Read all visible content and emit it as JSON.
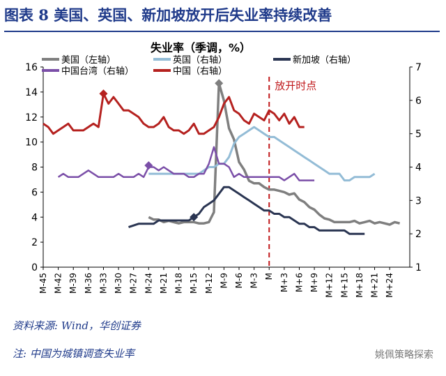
{
  "title": "图表 8   美国、英国、新加坡放开后失业率持续改善",
  "source": "资料来源: Wind，华创证券",
  "note": "注:  中国为城镇调查失业率",
  "watermark": "姚佩策略探索",
  "chart_data": {
    "type": "line",
    "title": "失业率（季调，%）",
    "left_axis": {
      "min": 0,
      "max": 16,
      "ticks": [
        0,
        2,
        4,
        6,
        8,
        10,
        12,
        14,
        16
      ]
    },
    "right_axis": {
      "min": 1,
      "max": 7,
      "ticks": [
        1,
        2,
        3,
        4,
        5,
        6,
        7
      ]
    },
    "x_start": -45,
    "x_end": 28,
    "x_tick_labels": [
      "M-45",
      "M-42",
      "M-39",
      "M-36",
      "M-33",
      "M-30",
      "M-27",
      "M-24",
      "M-21",
      "M-18",
      "M-15",
      "M-12",
      "M-9",
      "M-6",
      "M-3",
      "M",
      "M+3",
      "M+6",
      "M+9",
      "M+12",
      "M+15",
      "M+18",
      "M+21",
      "M+24"
    ],
    "x_tick_positions": [
      -45,
      -42,
      -39,
      -36,
      -33,
      -30,
      -27,
      -24,
      -21,
      -18,
      -15,
      -12,
      -9,
      -6,
      -3,
      0,
      3,
      6,
      9,
      12,
      15,
      18,
      21,
      24
    ],
    "reopen_month": 0,
    "reopen_label": "放开时点",
    "series": [
      {
        "name": "美国（左轴）",
        "axis": "left",
        "color": "#7f7f7f",
        "width": 3.5,
        "points": [
          [
            -24,
            4.0
          ],
          [
            -23,
            3.8
          ],
          [
            -22,
            3.8
          ],
          [
            -21,
            3.6
          ],
          [
            -20,
            3.7
          ],
          [
            -19,
            3.6
          ],
          [
            -18,
            3.5
          ],
          [
            -17,
            3.6
          ],
          [
            -16,
            3.6
          ],
          [
            -15,
            3.6
          ],
          [
            -14,
            3.5
          ],
          [
            -13,
            3.5
          ],
          [
            -12,
            3.6
          ],
          [
            -11,
            4.4
          ],
          [
            -10,
            14.7
          ],
          [
            -9,
            13.3
          ],
          [
            -8,
            11.1
          ],
          [
            -7,
            10.2
          ],
          [
            -6,
            8.4
          ],
          [
            -5,
            7.8
          ],
          [
            -4,
            6.9
          ],
          [
            -3,
            6.7
          ],
          [
            -2,
            6.7
          ],
          [
            -1,
            6.4
          ],
          [
            0,
            6.2
          ],
          [
            1,
            6.2
          ],
          [
            2,
            6.1
          ],
          [
            3,
            6.0
          ],
          [
            4,
            5.8
          ],
          [
            5,
            5.9
          ],
          [
            6,
            5.4
          ],
          [
            7,
            5.2
          ],
          [
            8,
            4.8
          ],
          [
            9,
            4.6
          ],
          [
            10,
            4.2
          ],
          [
            11,
            3.9
          ],
          [
            12,
            3.8
          ],
          [
            13,
            3.6
          ],
          [
            14,
            3.6
          ],
          [
            15,
            3.6
          ],
          [
            16,
            3.6
          ],
          [
            17,
            3.7
          ],
          [
            18,
            3.5
          ],
          [
            19,
            3.6
          ],
          [
            20,
            3.7
          ],
          [
            21,
            3.5
          ],
          [
            22,
            3.6
          ],
          [
            23,
            3.5
          ],
          [
            24,
            3.4
          ],
          [
            25,
            3.6
          ],
          [
            26,
            3.5
          ]
        ],
        "marker": [
          -10,
          14.7
        ]
      },
      {
        "name": "英国（右轴）",
        "axis": "right",
        "color": "#93bcd6",
        "width": 3,
        "points": [
          [
            -24,
            3.8
          ],
          [
            -23,
            3.8
          ],
          [
            -22,
            3.8
          ],
          [
            -21,
            3.8
          ],
          [
            -20,
            3.8
          ],
          [
            -19,
            3.8
          ],
          [
            -18,
            3.8
          ],
          [
            -17,
            3.8
          ],
          [
            -16,
            3.8
          ],
          [
            -15,
            3.8
          ],
          [
            -14,
            3.8
          ],
          [
            -13,
            3.9
          ],
          [
            -12,
            4.0
          ],
          [
            -11,
            4.0
          ],
          [
            -10,
            4.1
          ],
          [
            -9,
            4.1
          ],
          [
            -8,
            4.3
          ],
          [
            -7,
            4.7
          ],
          [
            -6,
            4.9
          ],
          [
            -5,
            5.0
          ],
          [
            -4,
            5.1
          ],
          [
            -3,
            5.2
          ],
          [
            -2,
            5.1
          ],
          [
            -1,
            5.0
          ],
          [
            0,
            4.9
          ],
          [
            1,
            4.9
          ],
          [
            2,
            4.8
          ],
          [
            3,
            4.7
          ],
          [
            4,
            4.6
          ],
          [
            5,
            4.5
          ],
          [
            6,
            4.4
          ],
          [
            7,
            4.3
          ],
          [
            8,
            4.2
          ],
          [
            9,
            4.1
          ],
          [
            10,
            4.0
          ],
          [
            11,
            3.9
          ],
          [
            12,
            3.8
          ],
          [
            13,
            3.8
          ],
          [
            14,
            3.8
          ],
          [
            15,
            3.6
          ],
          [
            16,
            3.6
          ],
          [
            17,
            3.7
          ],
          [
            18,
            3.7
          ],
          [
            19,
            3.7
          ],
          [
            20,
            3.7
          ],
          [
            21,
            3.8
          ]
        ]
      },
      {
        "name": "新加坡（右轴）",
        "axis": "right",
        "color": "#2a3552",
        "width": 3,
        "points": [
          [
            -28,
            2.2
          ],
          [
            -26,
            2.3
          ],
          [
            -24,
            2.3
          ],
          [
            -23,
            2.3
          ],
          [
            -22,
            2.4
          ],
          [
            -21,
            2.4
          ],
          [
            -20,
            2.4
          ],
          [
            -19,
            2.4
          ],
          [
            -18,
            2.4
          ],
          [
            -17,
            2.4
          ],
          [
            -16,
            2.4
          ],
          [
            -15,
            2.5
          ],
          [
            -14,
            2.6
          ],
          [
            -13,
            2.8
          ],
          [
            -12,
            2.9
          ],
          [
            -11,
            3.0
          ],
          [
            -10,
            3.2
          ],
          [
            -9,
            3.4
          ],
          [
            -8,
            3.4
          ],
          [
            -7,
            3.3
          ],
          [
            -6,
            3.2
          ],
          [
            -5,
            3.1
          ],
          [
            -4,
            3.0
          ],
          [
            -3,
            2.9
          ],
          [
            -2,
            2.8
          ],
          [
            -1,
            2.7
          ],
          [
            0,
            2.7
          ],
          [
            1,
            2.6
          ],
          [
            2,
            2.6
          ],
          [
            3,
            2.5
          ],
          [
            4,
            2.5
          ],
          [
            5,
            2.4
          ],
          [
            6,
            2.3
          ],
          [
            7,
            2.3
          ],
          [
            8,
            2.2
          ],
          [
            9,
            2.2
          ],
          [
            10,
            2.1
          ],
          [
            11,
            2.1
          ],
          [
            12,
            2.1
          ],
          [
            13,
            2.1
          ],
          [
            14,
            2.1
          ],
          [
            15,
            2.1
          ],
          [
            16,
            2.0
          ],
          [
            17,
            2.0
          ],
          [
            18,
            2.0
          ],
          [
            19,
            2.0
          ]
        ],
        "marker": [
          -15,
          2.5
        ]
      },
      {
        "name": "中国台湾（右轴）",
        "axis": "right",
        "color": "#7b4fa8",
        "width": 2.5,
        "points": [
          [
            -42,
            3.7
          ],
          [
            -41,
            3.8
          ],
          [
            -40,
            3.7
          ],
          [
            -39,
            3.7
          ],
          [
            -38,
            3.7
          ],
          [
            -37,
            3.8
          ],
          [
            -36,
            3.9
          ],
          [
            -35,
            3.8
          ],
          [
            -34,
            3.7
          ],
          [
            -33,
            3.7
          ],
          [
            -32,
            3.7
          ],
          [
            -31,
            3.7
          ],
          [
            -30,
            3.8
          ],
          [
            -29,
            3.7
          ],
          [
            -28,
            3.7
          ],
          [
            -27,
            3.7
          ],
          [
            -26,
            3.8
          ],
          [
            -25,
            3.7
          ],
          [
            -24,
            4.0
          ],
          [
            -23,
            4.0
          ],
          [
            -22,
            3.9
          ],
          [
            -21,
            4.0
          ],
          [
            -20,
            3.9
          ],
          [
            -19,
            3.8
          ],
          [
            -18,
            3.8
          ],
          [
            -17,
            3.8
          ],
          [
            -16,
            3.7
          ],
          [
            -15,
            3.7
          ],
          [
            -14,
            3.8
          ],
          [
            -13,
            3.8
          ],
          [
            -12,
            4.1
          ],
          [
            -11,
            4.6
          ],
          [
            -10,
            4.1
          ],
          [
            -9,
            4.1
          ],
          [
            -8,
            4.0
          ],
          [
            -7,
            3.7
          ],
          [
            -6,
            3.8
          ],
          [
            -5,
            3.7
          ],
          [
            -4,
            3.7
          ],
          [
            -3,
            3.7
          ],
          [
            -2,
            3.7
          ],
          [
            -1,
            3.7
          ],
          [
            0,
            3.7
          ],
          [
            1,
            3.7
          ],
          [
            2,
            3.7
          ],
          [
            3,
            3.6
          ],
          [
            4,
            3.7
          ],
          [
            5,
            3.8
          ],
          [
            6,
            3.6
          ],
          [
            7,
            3.6
          ],
          [
            8,
            3.6
          ],
          [
            9,
            3.6
          ]
        ],
        "marker": [
          -24,
          4.05
        ]
      },
      {
        "name": "中国（右轴）",
        "axis": "right",
        "color": "#b5211f",
        "width": 3,
        "points": [
          [
            -45,
            5.3
          ],
          [
            -44,
            5.2
          ],
          [
            -43,
            5.0
          ],
          [
            -42,
            5.1
          ],
          [
            -41,
            5.2
          ],
          [
            -40,
            5.3
          ],
          [
            -39,
            5.1
          ],
          [
            -38,
            5.1
          ],
          [
            -37,
            5.1
          ],
          [
            -36,
            5.2
          ],
          [
            -35,
            5.3
          ],
          [
            -34,
            5.2
          ],
          [
            -33,
            6.2
          ],
          [
            -32,
            5.9
          ],
          [
            -31,
            6.1
          ],
          [
            -30,
            5.9
          ],
          [
            -29,
            5.7
          ],
          [
            -28,
            5.7
          ],
          [
            -27,
            5.6
          ],
          [
            -26,
            5.5
          ],
          [
            -25,
            5.3
          ],
          [
            -24,
            5.2
          ],
          [
            -23,
            5.2
          ],
          [
            -22,
            5.3
          ],
          [
            -21,
            5.5
          ],
          [
            -20,
            5.2
          ],
          [
            -19,
            5.1
          ],
          [
            -18,
            5.1
          ],
          [
            -17,
            5.0
          ],
          [
            -16,
            5.1
          ],
          [
            -15,
            5.3
          ],
          [
            -14,
            5.0
          ],
          [
            -13,
            5.0
          ],
          [
            -12,
            5.1
          ],
          [
            -11,
            5.2
          ],
          [
            -10,
            5.5
          ],
          [
            -9,
            5.9
          ],
          [
            -8,
            6.1
          ],
          [
            -7,
            5.7
          ],
          [
            -6,
            5.6
          ],
          [
            -5,
            5.4
          ],
          [
            -4,
            5.3
          ],
          [
            -3,
            5.6
          ],
          [
            -2,
            5.5
          ],
          [
            -1,
            5.4
          ],
          [
            0,
            5.7
          ],
          [
            1,
            5.6
          ],
          [
            2,
            5.4
          ],
          [
            3,
            5.6
          ],
          [
            4,
            5.3
          ],
          [
            5,
            5.5
          ],
          [
            6,
            5.2
          ],
          [
            7,
            5.2
          ]
        ],
        "marker": [
          -33,
          6.2
        ]
      }
    ]
  }
}
